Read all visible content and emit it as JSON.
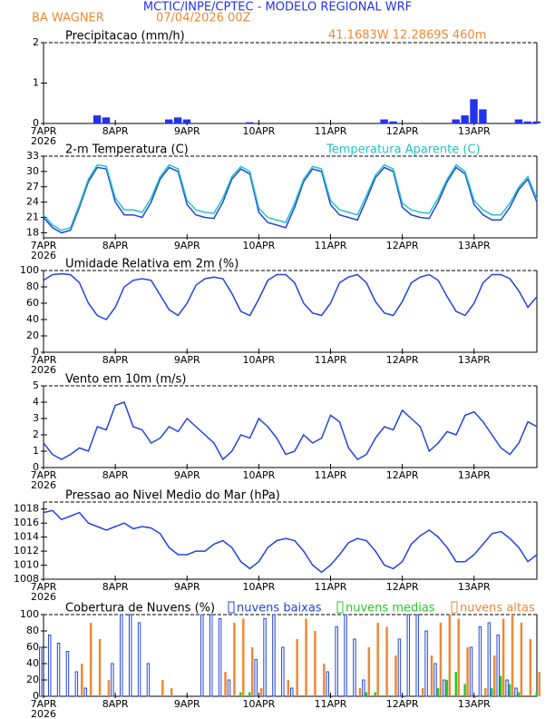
{
  "header": {
    "title": "MCTIC/INPE/CPTEC - MODELO REGIONAL WRF",
    "station": "BA WAGNER",
    "run": "07/04/2026 00Z",
    "location": "41.1683W 12.2869S 460m",
    "year": "2026"
  },
  "chart_data": [
    {
      "type": "bar",
      "title": "Precipitacao (mm/h)",
      "ylim": [
        0,
        2
      ],
      "yticks": [
        0,
        1,
        2
      ],
      "xlim": [
        0,
        165
      ],
      "xticks": [
        {
          "value": 0,
          "label": "7APR"
        },
        {
          "value": 24,
          "label": "8APR"
        },
        {
          "value": 48,
          "label": "9APR"
        },
        {
          "value": 72,
          "label": "10APR"
        },
        {
          "value": 96,
          "label": "11APR"
        },
        {
          "value": 120,
          "label": "12APR"
        },
        {
          "value": 144,
          "label": "13APR"
        }
      ],
      "x": [
        0,
        3,
        6,
        9,
        12,
        15,
        18,
        21,
        24,
        27,
        30,
        33,
        36,
        39,
        42,
        45,
        48,
        51,
        54,
        57,
        60,
        63,
        66,
        69,
        72,
        75,
        78,
        81,
        84,
        87,
        90,
        93,
        96,
        99,
        102,
        105,
        108,
        111,
        114,
        117,
        120,
        123,
        126,
        129,
        132,
        135,
        138,
        141,
        144,
        147,
        150,
        153,
        156,
        159,
        162,
        165
      ],
      "series": [
        {
          "color": "#2233ee",
          "values": [
            0,
            0,
            0,
            0,
            0,
            0,
            0.2,
            0.15,
            0,
            0,
            0,
            0,
            0,
            0,
            0.1,
            0.15,
            0.1,
            0,
            0,
            0,
            0,
            0,
            0,
            0.03,
            0,
            0,
            0,
            0,
            0,
            0,
            0,
            0.02,
            0,
            0,
            0,
            0,
            0,
            0,
            0.1,
            0.05,
            0,
            0,
            0,
            0,
            0,
            0,
            0.1,
            0.2,
            0.6,
            0.35,
            0,
            0,
            0,
            0.1,
            0.05,
            0.05
          ]
        }
      ]
    },
    {
      "type": "line",
      "ylim": [
        17,
        33
      ],
      "yticks": [
        18,
        21,
        24,
        27,
        30,
        33
      ],
      "xlim": [
        0,
        165
      ],
      "xticks": [
        {
          "value": 0,
          "label": "7APR"
        },
        {
          "value": 24,
          "label": "8APR"
        },
        {
          "value": 48,
          "label": "9APR"
        },
        {
          "value": 72,
          "label": "10APR"
        },
        {
          "value": 96,
          "label": "11APR"
        },
        {
          "value": 120,
          "label": "12APR"
        },
        {
          "value": 144,
          "label": "13APR"
        }
      ],
      "x": [
        0,
        3,
        6,
        9,
        12,
        15,
        18,
        21,
        24,
        27,
        30,
        33,
        36,
        39,
        42,
        45,
        48,
        51,
        54,
        57,
        60,
        63,
        66,
        69,
        72,
        75,
        78,
        81,
        84,
        87,
        90,
        93,
        96,
        99,
        102,
        105,
        108,
        111,
        114,
        117,
        120,
        123,
        126,
        129,
        132,
        135,
        138,
        141,
        144,
        147,
        150,
        153,
        156,
        159,
        162,
        165
      ],
      "series": [
        {
          "name": "2-m Temperatura (C)",
          "color": "#2244dd",
          "label_color": "#000000",
          "values": [
            21,
            19,
            18,
            18.5,
            23,
            28,
            30.8,
            30.5,
            24,
            21.5,
            21.5,
            21,
            24,
            28.5,
            30.8,
            30,
            23.5,
            21.5,
            21,
            20.8,
            24,
            28.5,
            30.5,
            29.5,
            22,
            20,
            19.5,
            19,
            23,
            28,
            30.5,
            30,
            23.5,
            21.5,
            21,
            20.5,
            24.5,
            28.8,
            30.8,
            30,
            23,
            21.5,
            21,
            20.8,
            24,
            28,
            30.8,
            29.5,
            23.5,
            21.5,
            20.5,
            20.5,
            23,
            26.5,
            28.5,
            24
          ]
        },
        {
          "name": "Temperatura Aparente (C)",
          "color": "#22c4c4",
          "label_color": "#22c4c4",
          "values": [
            21.5,
            19.5,
            18.5,
            19,
            23.5,
            28.5,
            31.3,
            31,
            24.8,
            22.5,
            22.5,
            22,
            24.8,
            29,
            31.3,
            30.5,
            24.3,
            22.5,
            22,
            21.8,
            24.8,
            29,
            31,
            30,
            22.8,
            21,
            20.5,
            20,
            23.8,
            28.5,
            31,
            30.5,
            24.3,
            22.5,
            22,
            21.5,
            25.3,
            29.3,
            31.3,
            30.5,
            23.8,
            22.5,
            22,
            21.8,
            24.8,
            28.5,
            31.3,
            30,
            24.3,
            22.5,
            21.5,
            21.5,
            23.8,
            27,
            29,
            24.5
          ]
        }
      ]
    },
    {
      "type": "line",
      "title": "Umidade Relativa em 2m (%)",
      "ylim": [
        0,
        100
      ],
      "yticks": [
        0,
        20,
        40,
        60,
        80,
        100
      ],
      "xlim": [
        0,
        165
      ],
      "xticks": [
        {
          "value": 0,
          "label": "7APR"
        },
        {
          "value": 24,
          "label": "8APR"
        },
        {
          "value": 48,
          "label": "9APR"
        },
        {
          "value": 72,
          "label": "10APR"
        },
        {
          "value": 96,
          "label": "11APR"
        },
        {
          "value": 120,
          "label": "12APR"
        },
        {
          "value": 144,
          "label": "13APR"
        }
      ],
      "x": [
        0,
        3,
        6,
        9,
        12,
        15,
        18,
        21,
        24,
        27,
        30,
        33,
        36,
        39,
        42,
        45,
        48,
        51,
        54,
        57,
        60,
        63,
        66,
        69,
        72,
        75,
        78,
        81,
        84,
        87,
        90,
        93,
        96,
        99,
        102,
        105,
        108,
        111,
        114,
        117,
        120,
        123,
        126,
        129,
        132,
        135,
        138,
        141,
        144,
        147,
        150,
        153,
        156,
        159,
        162,
        165
      ],
      "series": [
        {
          "color": "#2244dd",
          "values": [
            88,
            95,
            96,
            95,
            85,
            60,
            45,
            40,
            55,
            80,
            88,
            90,
            88,
            70,
            52,
            45,
            60,
            82,
            90,
            92,
            90,
            72,
            50,
            45,
            65,
            88,
            95,
            95,
            85,
            60,
            48,
            45,
            60,
            85,
            92,
            95,
            85,
            62,
            48,
            45,
            62,
            85,
            92,
            95,
            88,
            68,
            50,
            45,
            60,
            85,
            95,
            95,
            90,
            75,
            55,
            68
          ]
        }
      ]
    },
    {
      "type": "line",
      "title": "Vento em 10m (m/s)",
      "ylim": [
        0,
        5
      ],
      "yticks": [
        0,
        1,
        2,
        3,
        4,
        5
      ],
      "xlim": [
        0,
        165
      ],
      "xticks": [
        {
          "value": 0,
          "label": "7APR"
        },
        {
          "value": 24,
          "label": "8APR"
        },
        {
          "value": 48,
          "label": "9APR"
        },
        {
          "value": 72,
          "label": "10APR"
        },
        {
          "value": 96,
          "label": "11APR"
        },
        {
          "value": 120,
          "label": "12APR"
        },
        {
          "value": 144,
          "label": "13APR"
        }
      ],
      "x": [
        0,
        3,
        6,
        9,
        12,
        15,
        18,
        21,
        24,
        27,
        30,
        33,
        36,
        39,
        42,
        45,
        48,
        51,
        54,
        57,
        60,
        63,
        66,
        69,
        72,
        75,
        78,
        81,
        84,
        87,
        90,
        93,
        96,
        99,
        102,
        105,
        108,
        111,
        114,
        117,
        120,
        123,
        126,
        129,
        132,
        135,
        138,
        141,
        144,
        147,
        150,
        153,
        156,
        159,
        162,
        165
      ],
      "series": [
        {
          "color": "#2244dd",
          "values": [
            1.5,
            0.8,
            0.5,
            0.8,
            1.2,
            1.0,
            2.5,
            2.3,
            3.8,
            4.0,
            2.5,
            2.3,
            1.5,
            1.8,
            2.5,
            2.2,
            3.0,
            2.5,
            2.0,
            1.5,
            0.5,
            1.0,
            2.0,
            1.8,
            3.0,
            2.5,
            1.8,
            0.8,
            1.0,
            2.0,
            1.5,
            1.8,
            3.2,
            2.8,
            1.2,
            0.5,
            0.8,
            1.8,
            2.5,
            2.3,
            3.5,
            3.0,
            2.5,
            1.0,
            1.5,
            2.2,
            2.0,
            3.2,
            3.4,
            2.8,
            2.0,
            1.2,
            0.8,
            1.5,
            2.8,
            2.5
          ]
        }
      ]
    },
    {
      "type": "line",
      "title": "Pressao ao Nivel Medio do Mar (hPa)",
      "ylim": [
        1008,
        1019
      ],
      "yticks": [
        1008,
        1010,
        1012,
        1014,
        1016,
        1018
      ],
      "xlim": [
        0,
        165
      ],
      "xticks": [
        {
          "value": 0,
          "label": "7APR"
        },
        {
          "value": 24,
          "label": "8APR"
        },
        {
          "value": 48,
          "label": "9APR"
        },
        {
          "value": 72,
          "label": "10APR"
        },
        {
          "value": 96,
          "label": "11APR"
        },
        {
          "value": 120,
          "label": "12APR"
        },
        {
          "value": 144,
          "label": "13APR"
        }
      ],
      "x": [
        0,
        3,
        6,
        9,
        12,
        15,
        18,
        21,
        24,
        27,
        30,
        33,
        36,
        39,
        42,
        45,
        48,
        51,
        54,
        57,
        60,
        63,
        66,
        69,
        72,
        75,
        78,
        81,
        84,
        87,
        90,
        93,
        96,
        99,
        102,
        105,
        108,
        111,
        114,
        117,
        120,
        123,
        126,
        129,
        132,
        135,
        138,
        141,
        144,
        147,
        150,
        153,
        156,
        159,
        162,
        165
      ],
      "series": [
        {
          "color": "#2244dd",
          "values": [
            1017.5,
            1017.8,
            1016.5,
            1017,
            1017.5,
            1016,
            1015.5,
            1015,
            1015.5,
            1016,
            1015.2,
            1015.5,
            1015.3,
            1014.5,
            1012.5,
            1011.5,
            1011.5,
            1012,
            1012,
            1013,
            1013.5,
            1012.5,
            1010.5,
            1009.5,
            1010.5,
            1012.5,
            1013.5,
            1013.8,
            1013.5,
            1012,
            1010,
            1009,
            1010,
            1011.5,
            1013.2,
            1013.8,
            1013.5,
            1012,
            1010,
            1009.5,
            1010.5,
            1013,
            1014.2,
            1015,
            1014,
            1012.5,
            1010.5,
            1010.5,
            1011.5,
            1013,
            1014.5,
            1014.8,
            1013.8,
            1012.5,
            1010.5,
            1011.5
          ]
        }
      ]
    },
    {
      "type": "bar",
      "title": "Cobertura de Nuvens (%)",
      "ylim": [
        0,
        100
      ],
      "yticks": [
        0,
        20,
        40,
        60,
        80,
        100
      ],
      "xlim": [
        0,
        165
      ],
      "xticks": [
        {
          "value": 0,
          "label": "7APR"
        },
        {
          "value": 24,
          "label": "8APR"
        },
        {
          "value": 48,
          "label": "9APR"
        },
        {
          "value": 72,
          "label": "10APR"
        },
        {
          "value": 96,
          "label": "11APR"
        },
        {
          "value": 120,
          "label": "12APR"
        },
        {
          "value": 144,
          "label": "13APR"
        }
      ],
      "x": [
        0,
        3,
        6,
        9,
        12,
        15,
        18,
        21,
        24,
        27,
        30,
        33,
        36,
        39,
        42,
        45,
        48,
        51,
        54,
        57,
        60,
        63,
        66,
        69,
        72,
        75,
        78,
        81,
        84,
        87,
        90,
        93,
        96,
        99,
        102,
        105,
        108,
        111,
        114,
        117,
        120,
        123,
        126,
        129,
        132,
        135,
        138,
        141,
        144,
        147,
        150,
        153,
        156,
        159,
        162,
        165
      ],
      "series": [
        {
          "name": "nuvens baixas",
          "color": "#2244dd",
          "filled": false,
          "values": [
            60,
            75,
            65,
            55,
            30,
            10,
            0,
            0,
            40,
            100,
            100,
            90,
            40,
            0,
            0,
            0,
            0,
            0,
            100,
            100,
            95,
            20,
            0,
            0,
            45,
            95,
            100,
            60,
            10,
            0,
            0,
            0,
            30,
            85,
            100,
            70,
            20,
            0,
            0,
            0,
            70,
            100,
            100,
            80,
            40,
            20,
            0,
            0,
            60,
            85,
            90,
            75,
            20,
            10,
            0,
            0
          ]
        },
        {
          "name": "nuvens medias",
          "color": "#22cc22",
          "filled": true,
          "values": [
            0,
            0,
            0,
            0,
            0,
            0,
            0,
            0,
            0,
            0,
            0,
            0,
            0,
            0,
            0,
            0,
            0,
            0,
            0,
            0,
            0,
            0,
            5,
            5,
            0,
            0,
            0,
            0,
            0,
            0,
            0,
            0,
            0,
            0,
            0,
            0,
            5,
            5,
            0,
            0,
            0,
            0,
            0,
            0,
            10,
            20,
            30,
            15,
            0,
            0,
            10,
            25,
            15,
            5,
            0,
            5
          ]
        },
        {
          "name": "nuvens altas",
          "color": "#ee8833",
          "filled": true,
          "values": [
            0,
            0,
            0,
            0,
            40,
            90,
            70,
            20,
            0,
            0,
            0,
            0,
            0,
            20,
            10,
            0,
            0,
            0,
            0,
            0,
            30,
            90,
            95,
            60,
            10,
            0,
            0,
            20,
            70,
            95,
            80,
            40,
            0,
            0,
            0,
            10,
            60,
            90,
            85,
            50,
            0,
            0,
            10,
            50,
            90,
            100,
            95,
            60,
            0,
            10,
            50,
            95,
            100,
            90,
            70,
            30
          ]
        }
      ]
    }
  ]
}
